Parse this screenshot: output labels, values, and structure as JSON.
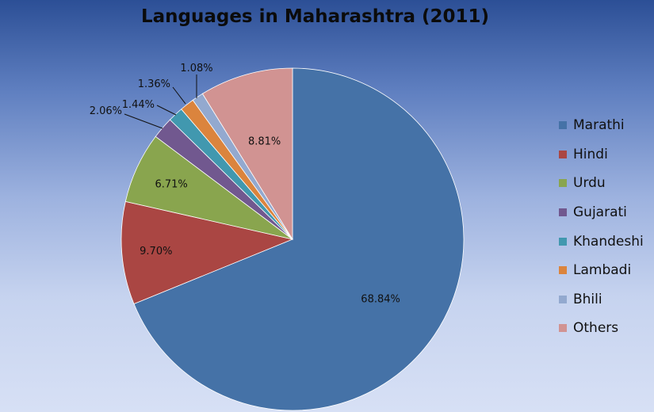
{
  "chart_data": {
    "type": "pie",
    "title": "Languages in Maharashtra (2011)",
    "categories": [
      "Marathi",
      "Hindi",
      "Urdu",
      "Gujarati",
      "Khandeshi",
      "Lambadi",
      "Bhili",
      "Others"
    ],
    "values": [
      68.84,
      9.7,
      6.71,
      2.06,
      1.44,
      1.36,
      1.08,
      8.81
    ],
    "data_labels": [
      "68.84%",
      "9.70%",
      "6.71%",
      "2.06%",
      "1.44%",
      "1.36%",
      "1.08%",
      "8.81%"
    ],
    "colors": [
      "#4572a7",
      "#aa4643",
      "#89a54e",
      "#71588f",
      "#4198af",
      "#db843d",
      "#93a9cf",
      "#d19392"
    ],
    "legend_position": "right",
    "start_angle": "12 o'clock",
    "direction": "clockwise"
  }
}
